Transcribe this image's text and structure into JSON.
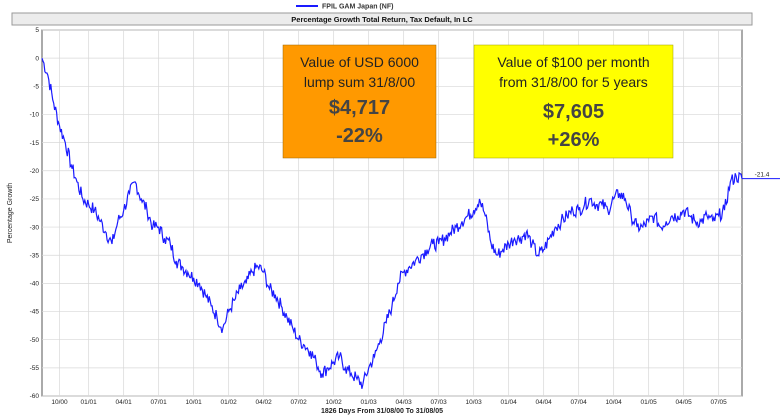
{
  "legend": {
    "series_name": "FPIL GAM Japan (NF)",
    "color": "#1a1aff"
  },
  "chart_data": {
    "type": "line",
    "title": "Percentage Growth Total Return, Tax Default, In LC",
    "xlabel": "1826 Days From 31/08/00 To 31/08/05",
    "ylabel": "Percentage Growth",
    "ylim": [
      -60,
      5
    ],
    "yticks": [
      5,
      0,
      -5,
      -10,
      -15,
      -20,
      -25,
      -30,
      -35,
      -40,
      -45,
      -50,
      -55,
      -60
    ],
    "ytick_labels": [
      "5",
      "0",
      "-5",
      "-10",
      "-15",
      "-20",
      "-25",
      "-30",
      "-35",
      "-40",
      "-45",
      "-50",
      "-55",
      "-60"
    ],
    "xlim": [
      0,
      60
    ],
    "xticks": [
      1.5,
      4,
      7,
      10,
      13,
      16,
      19,
      22,
      25,
      28,
      31,
      34,
      37,
      40,
      43,
      46,
      49,
      52,
      55,
      58
    ],
    "xtick_labels": [
      "10/00",
      "01/01",
      "04/01",
      "07/01",
      "10/01",
      "01/02",
      "04/02",
      "07/02",
      "10/02",
      "01/03",
      "04/03",
      "07/03",
      "10/03",
      "01/04",
      "04/04",
      "07/04",
      "10/04",
      "01/05",
      "04/05",
      "07/05"
    ],
    "grid": true,
    "end_value_label": "-21.4",
    "series": [
      {
        "name": "FPIL GAM Japan (NF)",
        "color": "#1a1aff",
        "x": [
          0,
          0.5,
          1,
          1.5,
          2,
          2.5,
          3,
          3.5,
          4,
          4.5,
          5,
          5.5,
          6,
          6.5,
          7,
          7.5,
          8,
          8.5,
          9,
          9.5,
          10,
          10.5,
          11,
          11.5,
          12,
          12.5,
          13,
          13.5,
          14,
          14.5,
          15,
          15.5,
          16,
          16.5,
          17,
          17.5,
          18,
          18.5,
          19,
          19.5,
          20,
          20.5,
          21,
          21.5,
          22,
          22.5,
          23,
          23.5,
          24,
          24.5,
          25,
          25.5,
          26,
          26.5,
          27,
          27.5,
          28,
          28.5,
          29,
          29.5,
          30,
          30.5,
          31,
          31.5,
          32,
          32.5,
          33,
          33.5,
          34,
          34.5,
          35,
          35.5,
          36,
          36.5,
          37,
          37.5,
          38,
          38.5,
          39,
          39.5,
          40,
          40.5,
          41,
          41.5,
          42,
          42.5,
          43,
          43.5,
          44,
          44.5,
          45,
          45.5,
          46,
          46.5,
          47,
          47.5,
          48,
          48.5,
          49,
          49.5,
          50,
          50.5,
          51,
          51.5,
          52,
          52.5,
          53,
          53.5,
          54,
          54.5,
          55,
          55.5,
          56,
          56.5,
          57,
          57.5,
          58,
          58.5,
          59,
          59.5,
          60
        ],
        "values": [
          0,
          -3,
          -8,
          -12,
          -15,
          -19,
          -22,
          -25,
          -26,
          -27,
          -29,
          -31,
          -33,
          -29,
          -27,
          -24,
          -22,
          -25,
          -27,
          -30,
          -30,
          -32,
          -33,
          -36,
          -37,
          -38,
          -39,
          -40,
          -42,
          -44,
          -46,
          -48,
          -45,
          -43,
          -41,
          -40,
          -38,
          -37,
          -38,
          -41,
          -42,
          -44,
          -46,
          -48,
          -50,
          -51,
          -52,
          -54,
          -56,
          -55,
          -54,
          -53,
          -55,
          -56,
          -57,
          -58,
          -55,
          -53,
          -50,
          -47,
          -44,
          -40,
          -38,
          -37,
          -36,
          -35,
          -34,
          -33,
          -33,
          -32,
          -31,
          -30,
          -29,
          -28,
          -27,
          -25,
          -28,
          -33,
          -35,
          -34,
          -33,
          -32,
          -32,
          -31,
          -33,
          -35,
          -34,
          -32,
          -30,
          -29,
          -28,
          -27,
          -27,
          -26,
          -25,
          -26,
          -26,
          -27,
          -25,
          -24,
          -25,
          -28,
          -30,
          -30,
          -29,
          -28,
          -30,
          -29,
          -28,
          -28,
          -27,
          -28,
          -29,
          -29,
          -28,
          -29,
          -28,
          -27,
          -22,
          -21,
          -21.4
        ]
      }
    ]
  },
  "callouts": {
    "lump": {
      "line1": "Value of USD 6000",
      "line2": "lump sum 31/8/00",
      "value": "$4,717",
      "change": "-22%",
      "bg": "#ff9900"
    },
    "monthly": {
      "line1": "Value of $100 per month",
      "line2": "from 31/8/00 for 5 years",
      "value": "$7,605",
      "change": "+26%",
      "bg": "#ffff00"
    }
  }
}
